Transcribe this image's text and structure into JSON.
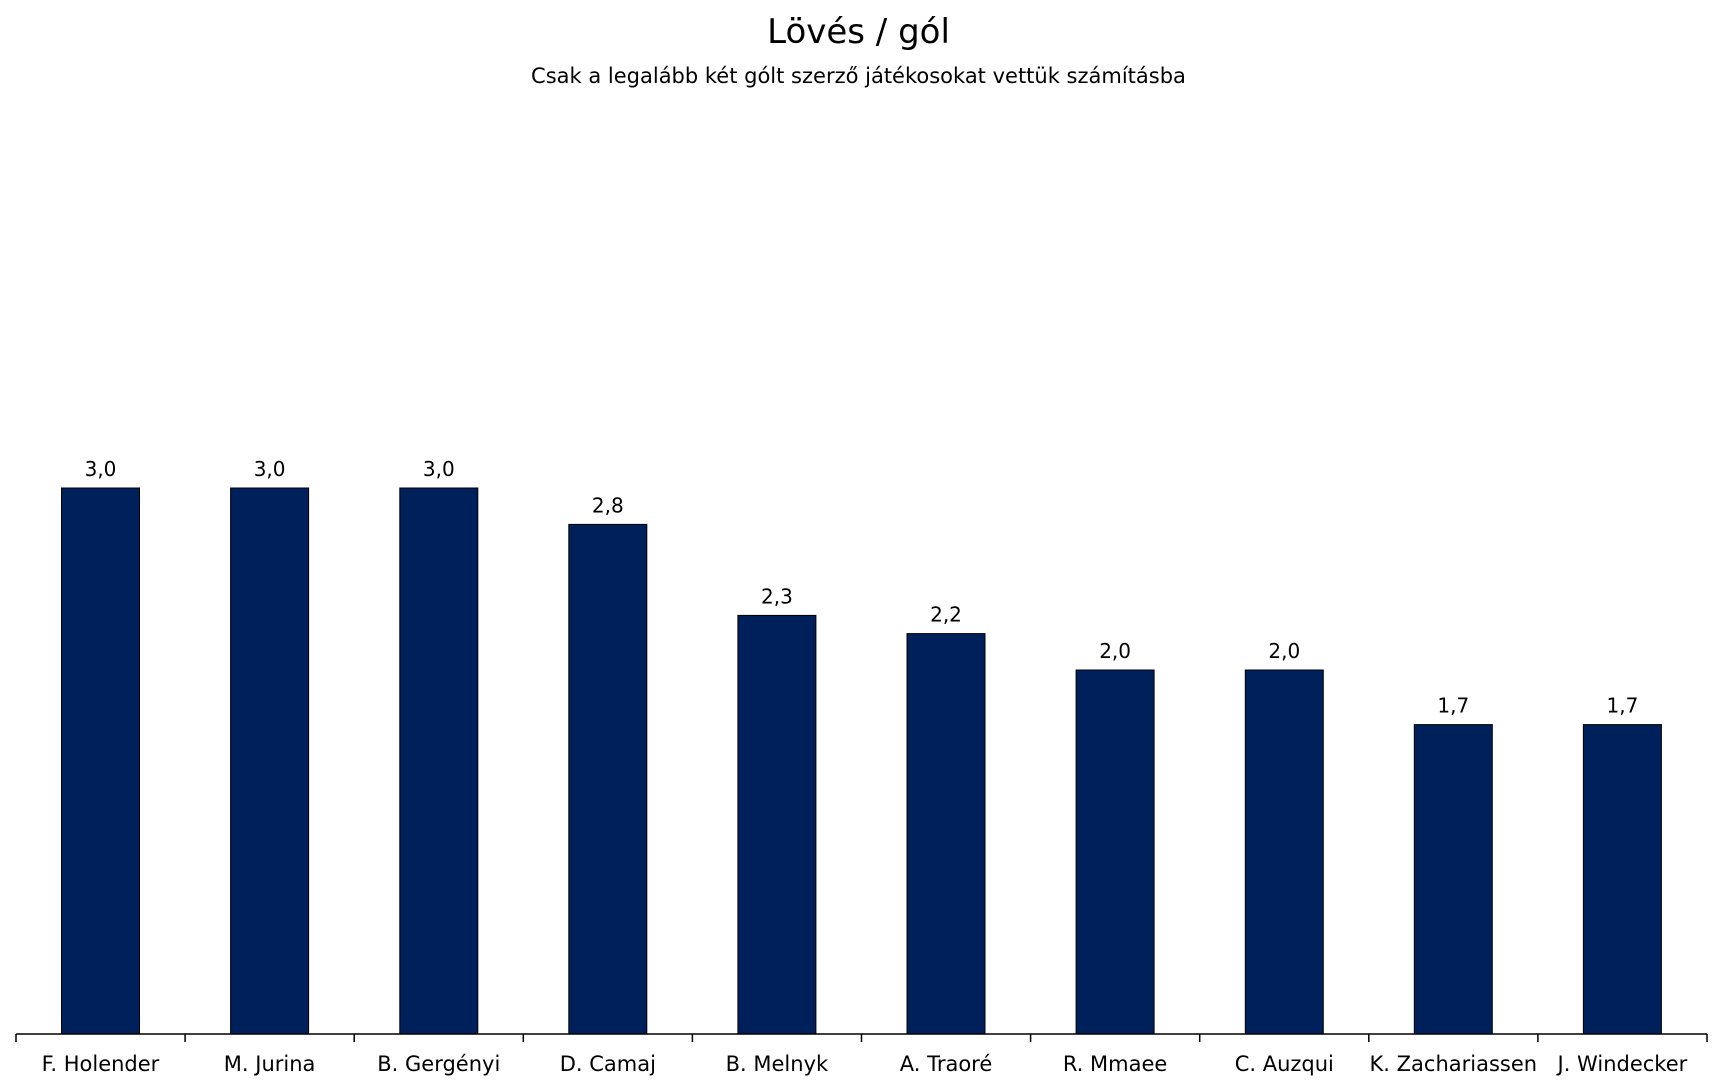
{
  "chart_data": {
    "type": "bar",
    "title": "Lövés / gól",
    "subtitle": "Csak a legalább két gólt szerző játékosokat vettük számításba",
    "categories": [
      "F. Holender",
      "M. Jurina",
      "B. Gergényi",
      "D. Camaj",
      "B. Melnyk",
      "A. Traoré",
      "R. Mmaee",
      "C. Auzqui",
      "K. Zachariassen",
      "J. Windecker"
    ],
    "values": [
      3.0,
      3.0,
      3.0,
      2.8,
      2.3,
      2.2,
      2.0,
      2.0,
      1.7,
      1.7
    ],
    "value_labels": [
      "3,0",
      "3,0",
      "3,0",
      "2,8",
      "2,3",
      "2,2",
      "2,0",
      "2,0",
      "1,7",
      "1,7"
    ],
    "xlabel": "",
    "ylabel": "",
    "ylim": [
      0,
      3.6
    ],
    "grid": false,
    "bar_color": "#00205B"
  }
}
